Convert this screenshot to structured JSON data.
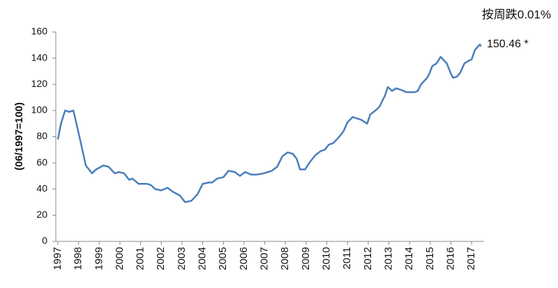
{
  "chart_data": {
    "type": "line",
    "y_label": "(06/1997=100)",
    "annotations": [
      "按周跌0.01%",
      "150.46 *"
    ],
    "x": [
      1997.0,
      1997.15,
      1997.35,
      1997.55,
      1997.75,
      1998.1,
      1998.35,
      1998.65,
      1998.85,
      1999.2,
      1999.45,
      1999.75,
      1999.95,
      2000.2,
      2000.45,
      2000.6,
      2000.9,
      2001.3,
      2001.5,
      2001.7,
      2002.0,
      2002.3,
      2002.55,
      2002.9,
      2003.15,
      2003.45,
      2003.75,
      2004.0,
      2004.3,
      2004.45,
      2004.7,
      2005.0,
      2005.25,
      2005.55,
      2005.8,
      2006.05,
      2006.35,
      2006.6,
      2006.95,
      2007.35,
      2007.6,
      2007.85,
      2008.1,
      2008.35,
      2008.55,
      2008.7,
      2008.95,
      2009.15,
      2009.45,
      2009.7,
      2009.9,
      2010.1,
      2010.3,
      2010.55,
      2010.8,
      2011.0,
      2011.25,
      2011.45,
      2011.65,
      2011.85,
      2011.95,
      2012.1,
      2012.35,
      2012.55,
      2012.7,
      2012.8,
      2012.95,
      2013.15,
      2013.35,
      2013.55,
      2013.85,
      2014.25,
      2014.4,
      2014.55,
      2014.85,
      2014.95,
      2015.1,
      2015.3,
      2015.5,
      2015.8,
      2016.0,
      2016.1,
      2016.3,
      2016.45,
      2016.65,
      2016.85,
      2017.0,
      2017.15,
      2017.3,
      2017.4,
      2017.45
    ],
    "series": [
      {
        "color": "#4a7ebb",
        "values": [
          78,
          90,
          100,
          99,
          100,
          76,
          58,
          52,
          55,
          58,
          57,
          52,
          53,
          52,
          47,
          48,
          44,
          44,
          43,
          40,
          39,
          41,
          38,
          35,
          30,
          31,
          36,
          44,
          45,
          45,
          48,
          49,
          54,
          53,
          50,
          53,
          51,
          51,
          52,
          54,
          57,
          65,
          68,
          67,
          63,
          55,
          55,
          60,
          66,
          69,
          70,
          74,
          75,
          79,
          84,
          91,
          95,
          94,
          93,
          91,
          90,
          97,
          100,
          103,
          108,
          111,
          118,
          115,
          117,
          116,
          114,
          114,
          115,
          120,
          125,
          128,
          134,
          136,
          141,
          136,
          128,
          125,
          126,
          129,
          136,
          138,
          139,
          146,
          149,
          150.46,
          149
        ]
      }
    ],
    "xlim": [
      1996.9,
      2017.6
    ],
    "xticks": [
      1997,
      1998,
      1999,
      2000,
      2001,
      2002,
      2003,
      2004,
      2005,
      2006,
      2007,
      2008,
      2009,
      2010,
      2011,
      2012,
      2013,
      2014,
      2015,
      2016,
      2017
    ],
    "ylim": [
      0,
      160
    ],
    "yticks": [
      0,
      20,
      40,
      60,
      80,
      100,
      120,
      140,
      160
    ],
    "grid": false
  }
}
